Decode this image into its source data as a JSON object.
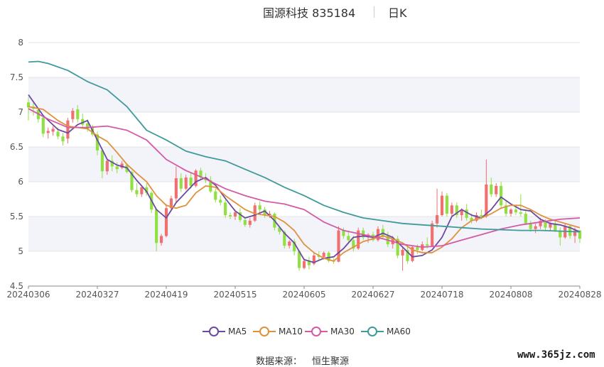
{
  "header": {
    "title": "国源科技 835184",
    "period": "日K"
  },
  "legend": [
    {
      "name": "MA5",
      "color": "#6b4aa0"
    },
    {
      "name": "MA10",
      "color": "#e0913c"
    },
    {
      "name": "MA30",
      "color": "#d45aa6"
    },
    {
      "name": "MA60",
      "color": "#3f9a9a"
    }
  ],
  "source": {
    "label": "数据来源：",
    "name": "恒生聚源"
  },
  "watermark": "www.365jz.com",
  "colors": {
    "up": "#f07070",
    "down": "#8fe040",
    "band": "#f3f3fa",
    "grid": "#e6e6e6",
    "axis": "#555555"
  },
  "chart_data": {
    "type": "candlestick",
    "ylim": [
      4.5,
      8
    ],
    "yticks": [
      4.5,
      5,
      5.5,
      6,
      6.5,
      7,
      7.5,
      8
    ],
    "xticks": [
      {
        "label": "20240306",
        "index": 0
      },
      {
        "label": "20240327",
        "index": 14
      },
      {
        "label": "20240419",
        "index": 28
      },
      {
        "label": "20240515",
        "index": 42
      },
      {
        "label": "20240605",
        "index": 56
      },
      {
        "label": "20240627",
        "index": 70
      },
      {
        "label": "20240718",
        "index": 84
      },
      {
        "label": "20240808",
        "index": 98
      },
      {
        "label": "20240828",
        "index": 112
      }
    ],
    "ohlc": [
      [
        7.14,
        7.22,
        6.88,
        7.07
      ],
      [
        7.08,
        7.13,
        6.95,
        7.05
      ],
      [
        7.03,
        7.06,
        6.85,
        6.9
      ],
      [
        6.92,
        6.96,
        6.64,
        6.69
      ],
      [
        6.7,
        6.78,
        6.62,
        6.73
      ],
      [
        6.72,
        6.8,
        6.66,
        6.76
      ],
      [
        6.72,
        6.78,
        6.61,
        6.65
      ],
      [
        6.65,
        6.7,
        6.52,
        6.58
      ],
      [
        6.62,
        6.92,
        6.55,
        6.88
      ],
      [
        6.9,
        7.06,
        6.85,
        7.02
      ],
      [
        7.04,
        7.1,
        6.85,
        6.9
      ],
      [
        6.9,
        6.98,
        6.78,
        6.82
      ],
      [
        6.84,
        6.9,
        6.72,
        6.76
      ],
      [
        6.78,
        6.82,
        6.65,
        6.68
      ],
      [
        6.68,
        6.72,
        6.38,
        6.45
      ],
      [
        6.45,
        6.48,
        6.05,
        6.15
      ],
      [
        6.15,
        6.33,
        6.1,
        6.3
      ],
      [
        6.3,
        6.38,
        6.15,
        6.22
      ],
      [
        6.22,
        6.28,
        6.12,
        6.18
      ],
      [
        6.2,
        6.3,
        6.18,
        6.26
      ],
      [
        6.24,
        6.26,
        6.12,
        6.14
      ],
      [
        6.14,
        6.16,
        5.85,
        5.88
      ],
      [
        5.88,
        5.98,
        5.78,
        5.82
      ],
      [
        5.82,
        5.95,
        5.78,
        5.92
      ],
      [
        5.92,
        5.98,
        5.8,
        5.84
      ],
      [
        5.84,
        5.86,
        5.55,
        5.6
      ],
      [
        5.6,
        5.62,
        5.0,
        5.12
      ],
      [
        5.12,
        5.25,
        5.08,
        5.22
      ],
      [
        5.22,
        5.68,
        5.2,
        5.62
      ],
      [
        5.62,
        5.8,
        5.58,
        5.76
      ],
      [
        5.76,
        6.22,
        5.7,
        6.05
      ],
      [
        6.05,
        6.12,
        5.85,
        5.9
      ],
      [
        5.9,
        6.1,
        5.88,
        6.06
      ],
      [
        6.06,
        6.14,
        5.9,
        5.94
      ],
      [
        5.94,
        6.18,
        5.92,
        6.16
      ],
      [
        6.16,
        6.2,
        6.02,
        6.06
      ],
      [
        6.06,
        6.12,
        5.98,
        6.02
      ],
      [
        6.02,
        6.08,
        5.84,
        5.86
      ],
      [
        5.86,
        5.9,
        5.7,
        5.74
      ],
      [
        5.74,
        5.8,
        5.66,
        5.7
      ],
      [
        5.7,
        5.74,
        5.48,
        5.52
      ],
      [
        5.52,
        5.56,
        5.46,
        5.5
      ],
      [
        5.5,
        5.6,
        5.45,
        5.56
      ],
      [
        5.56,
        5.62,
        5.42,
        5.45
      ],
      [
        5.45,
        5.48,
        5.35,
        5.38
      ],
      [
        5.38,
        5.48,
        5.34,
        5.44
      ],
      [
        5.44,
        5.7,
        5.42,
        5.66
      ],
      [
        5.66,
        5.72,
        5.55,
        5.6
      ],
      [
        5.6,
        5.64,
        5.48,
        5.52
      ],
      [
        5.52,
        5.58,
        5.48,
        5.54
      ],
      [
        5.54,
        5.56,
        5.3,
        5.34
      ],
      [
        5.34,
        5.36,
        5.24,
        5.28
      ],
      [
        5.28,
        5.3,
        5.04,
        5.08
      ],
      [
        5.08,
        5.16,
        5.04,
        5.14
      ],
      [
        5.14,
        5.18,
        4.94,
        5.0
      ],
      [
        5.0,
        5.02,
        4.72,
        4.76
      ],
      [
        4.76,
        4.9,
        4.74,
        4.86
      ],
      [
        4.86,
        4.92,
        4.74,
        4.8
      ],
      [
        4.82,
        4.98,
        4.8,
        4.94
      ],
      [
        4.94,
        5.0,
        4.88,
        4.92
      ],
      [
        4.92,
        5.0,
        4.88,
        4.98
      ],
      [
        4.98,
        5.0,
        4.84,
        4.86
      ],
      [
        4.86,
        4.9,
        4.82,
        4.85
      ],
      [
        4.85,
        5.36,
        4.84,
        5.3
      ],
      [
        5.3,
        5.34,
        5.18,
        5.22
      ],
      [
        5.22,
        5.3,
        5.12,
        5.16
      ],
      [
        5.16,
        5.22,
        5.0,
        5.04
      ],
      [
        5.04,
        5.34,
        5.02,
        5.3
      ],
      [
        5.3,
        5.34,
        5.16,
        5.2
      ],
      [
        5.2,
        5.26,
        5.12,
        5.24
      ],
      [
        5.24,
        5.28,
        5.14,
        5.16
      ],
      [
        5.16,
        5.36,
        5.14,
        5.32
      ],
      [
        5.32,
        5.38,
        5.18,
        5.22
      ],
      [
        5.22,
        5.28,
        5.06,
        5.1
      ],
      [
        5.1,
        5.22,
        5.04,
        5.18
      ],
      [
        5.18,
        5.22,
        4.9,
        4.94
      ],
      [
        4.94,
        5.06,
        4.72,
        5.02
      ],
      [
        5.02,
        5.06,
        4.82,
        4.86
      ],
      [
        4.86,
        5.08,
        4.84,
        5.06
      ],
      [
        5.06,
        5.1,
        4.96,
        5.02
      ],
      [
        5.02,
        5.14,
        5.0,
        5.1
      ],
      [
        5.1,
        5.2,
        5.04,
        5.08
      ],
      [
        5.08,
        5.44,
        5.06,
        5.4
      ],
      [
        5.4,
        5.9,
        5.34,
        5.52
      ],
      [
        5.52,
        5.86,
        5.5,
        5.8
      ],
      [
        5.8,
        5.84,
        5.5,
        5.54
      ],
      [
        5.54,
        5.7,
        5.5,
        5.66
      ],
      [
        5.66,
        5.7,
        5.48,
        5.52
      ],
      [
        5.52,
        5.62,
        5.44,
        5.6
      ],
      [
        5.6,
        5.68,
        5.44,
        5.48
      ],
      [
        5.48,
        5.54,
        5.4,
        5.44
      ],
      [
        5.44,
        5.56,
        5.42,
        5.52
      ],
      [
        5.52,
        5.6,
        5.46,
        5.5
      ],
      [
        5.5,
        6.32,
        5.48,
        5.96
      ],
      [
        5.96,
        6.06,
        5.78,
        5.82
      ],
      [
        5.82,
        5.98,
        5.78,
        5.94
      ],
      [
        5.94,
        6.0,
        5.62,
        5.66
      ],
      [
        5.66,
        5.74,
        5.5,
        5.54
      ],
      [
        5.54,
        5.62,
        5.5,
        5.6
      ],
      [
        5.6,
        5.66,
        5.52,
        5.56
      ],
      [
        5.56,
        5.82,
        5.5,
        5.54
      ],
      [
        5.54,
        5.58,
        5.38,
        5.4
      ],
      [
        5.4,
        5.44,
        5.28,
        5.32
      ],
      [
        5.32,
        5.4,
        5.26,
        5.36
      ],
      [
        5.36,
        5.48,
        5.32,
        5.44
      ],
      [
        5.44,
        5.46,
        5.3,
        5.34
      ],
      [
        5.34,
        5.42,
        5.3,
        5.4
      ],
      [
        5.4,
        5.44,
        5.28,
        5.3
      ],
      [
        5.3,
        5.34,
        5.08,
        5.2
      ],
      [
        5.2,
        5.4,
        5.18,
        5.36
      ],
      [
        5.36,
        5.38,
        5.18,
        5.22
      ],
      [
        5.22,
        5.34,
        5.12,
        5.3
      ],
      [
        5.3,
        5.3,
        5.12,
        5.18
      ]
    ],
    "ma": [
      {
        "name": "MA5",
        "color": "#6b4aa0",
        "points": [
          [
            0,
            7.25
          ],
          [
            3,
            6.95
          ],
          [
            6,
            6.75
          ],
          [
            8,
            6.7
          ],
          [
            10,
            6.82
          ],
          [
            12,
            6.88
          ],
          [
            14,
            6.6
          ],
          [
            16,
            6.32
          ],
          [
            18,
            6.24
          ],
          [
            20,
            6.2
          ],
          [
            22,
            6.02
          ],
          [
            24,
            5.86
          ],
          [
            26,
            5.6
          ],
          [
            28,
            5.48
          ],
          [
            30,
            5.7
          ],
          [
            32,
            5.85
          ],
          [
            34,
            6.0
          ],
          [
            36,
            6.06
          ],
          [
            38,
            5.95
          ],
          [
            40,
            5.76
          ],
          [
            42,
            5.58
          ],
          [
            44,
            5.48
          ],
          [
            46,
            5.52
          ],
          [
            48,
            5.58
          ],
          [
            50,
            5.44
          ],
          [
            52,
            5.26
          ],
          [
            54,
            5.12
          ],
          [
            56,
            4.88
          ],
          [
            58,
            4.84
          ],
          [
            60,
            4.9
          ],
          [
            62,
            4.92
          ],
          [
            64,
            5.04
          ],
          [
            66,
            5.2
          ],
          [
            68,
            5.22
          ],
          [
            70,
            5.2
          ],
          [
            72,
            5.26
          ],
          [
            74,
            5.2
          ],
          [
            76,
            5.06
          ],
          [
            78,
            4.92
          ],
          [
            80,
            4.94
          ],
          [
            82,
            5.02
          ],
          [
            84,
            5.2
          ],
          [
            86,
            5.5
          ],
          [
            88,
            5.6
          ],
          [
            90,
            5.52
          ],
          [
            92,
            5.48
          ],
          [
            94,
            5.6
          ],
          [
            96,
            5.78
          ],
          [
            98,
            5.68
          ],
          [
            100,
            5.6
          ],
          [
            102,
            5.58
          ],
          [
            104,
            5.46
          ],
          [
            106,
            5.4
          ],
          [
            108,
            5.38
          ],
          [
            110,
            5.34
          ],
          [
            112,
            5.28
          ]
        ]
      },
      {
        "name": "MA10",
        "color": "#e0913c",
        "points": [
          [
            0,
            7.08
          ],
          [
            3,
            7.04
          ],
          [
            6,
            6.88
          ],
          [
            8,
            6.8
          ],
          [
            10,
            6.78
          ],
          [
            12,
            6.76
          ],
          [
            14,
            6.66
          ],
          [
            16,
            6.58
          ],
          [
            18,
            6.42
          ],
          [
            20,
            6.25
          ],
          [
            22,
            6.12
          ],
          [
            24,
            6.0
          ],
          [
            26,
            5.8
          ],
          [
            28,
            5.66
          ],
          [
            30,
            5.62
          ],
          [
            32,
            5.66
          ],
          [
            34,
            5.84
          ],
          [
            36,
            5.94
          ],
          [
            38,
            5.92
          ],
          [
            40,
            5.8
          ],
          [
            42,
            5.7
          ],
          [
            44,
            5.6
          ],
          [
            46,
            5.54
          ],
          [
            48,
            5.52
          ],
          [
            50,
            5.5
          ],
          [
            52,
            5.42
          ],
          [
            54,
            5.3
          ],
          [
            56,
            5.1
          ],
          [
            58,
            4.98
          ],
          [
            60,
            4.9
          ],
          [
            62,
            4.86
          ],
          [
            64,
            4.98
          ],
          [
            66,
            5.06
          ],
          [
            68,
            5.14
          ],
          [
            70,
            5.18
          ],
          [
            72,
            5.22
          ],
          [
            74,
            5.18
          ],
          [
            76,
            5.12
          ],
          [
            78,
            5.02
          ],
          [
            80,
            4.98
          ],
          [
            82,
            4.98
          ],
          [
            84,
            5.06
          ],
          [
            86,
            5.18
          ],
          [
            88,
            5.34
          ],
          [
            90,
            5.44
          ],
          [
            92,
            5.48
          ],
          [
            94,
            5.54
          ],
          [
            96,
            5.62
          ],
          [
            98,
            5.66
          ],
          [
            100,
            5.66
          ],
          [
            102,
            5.6
          ],
          [
            104,
            5.52
          ],
          [
            106,
            5.46
          ],
          [
            108,
            5.42
          ],
          [
            110,
            5.38
          ],
          [
            112,
            5.34
          ]
        ]
      },
      {
        "name": "MA30",
        "color": "#d45aa6",
        "points": [
          [
            0,
            7.05
          ],
          [
            4,
            6.9
          ],
          [
            8,
            6.78
          ],
          [
            12,
            6.78
          ],
          [
            16,
            6.8
          ],
          [
            20,
            6.74
          ],
          [
            24,
            6.6
          ],
          [
            28,
            6.32
          ],
          [
            32,
            6.16
          ],
          [
            36,
            6.04
          ],
          [
            40,
            5.9
          ],
          [
            44,
            5.8
          ],
          [
            48,
            5.72
          ],
          [
            52,
            5.68
          ],
          [
            56,
            5.6
          ],
          [
            60,
            5.42
          ],
          [
            64,
            5.3
          ],
          [
            68,
            5.24
          ],
          [
            72,
            5.18
          ],
          [
            76,
            5.1
          ],
          [
            80,
            5.06
          ],
          [
            84,
            5.08
          ],
          [
            88,
            5.16
          ],
          [
            92,
            5.24
          ],
          [
            96,
            5.32
          ],
          [
            100,
            5.38
          ],
          [
            104,
            5.42
          ],
          [
            108,
            5.46
          ],
          [
            112,
            5.48
          ]
        ]
      },
      {
        "name": "MA60",
        "color": "#3f9a9a",
        "points": [
          [
            0,
            7.72
          ],
          [
            2,
            7.73
          ],
          [
            4,
            7.7
          ],
          [
            8,
            7.6
          ],
          [
            12,
            7.44
          ],
          [
            16,
            7.32
          ],
          [
            20,
            7.08
          ],
          [
            24,
            6.74
          ],
          [
            28,
            6.6
          ],
          [
            32,
            6.44
          ],
          [
            36,
            6.36
          ],
          [
            40,
            6.3
          ],
          [
            44,
            6.18
          ],
          [
            48,
            6.06
          ],
          [
            52,
            5.92
          ],
          [
            56,
            5.8
          ],
          [
            60,
            5.66
          ],
          [
            64,
            5.56
          ],
          [
            68,
            5.48
          ],
          [
            72,
            5.44
          ],
          [
            76,
            5.4
          ],
          [
            80,
            5.38
          ],
          [
            84,
            5.36
          ],
          [
            88,
            5.34
          ],
          [
            92,
            5.32
          ],
          [
            96,
            5.31
          ],
          [
            100,
            5.3
          ],
          [
            104,
            5.3
          ],
          [
            108,
            5.29
          ],
          [
            112,
            5.28
          ]
        ]
      }
    ]
  }
}
